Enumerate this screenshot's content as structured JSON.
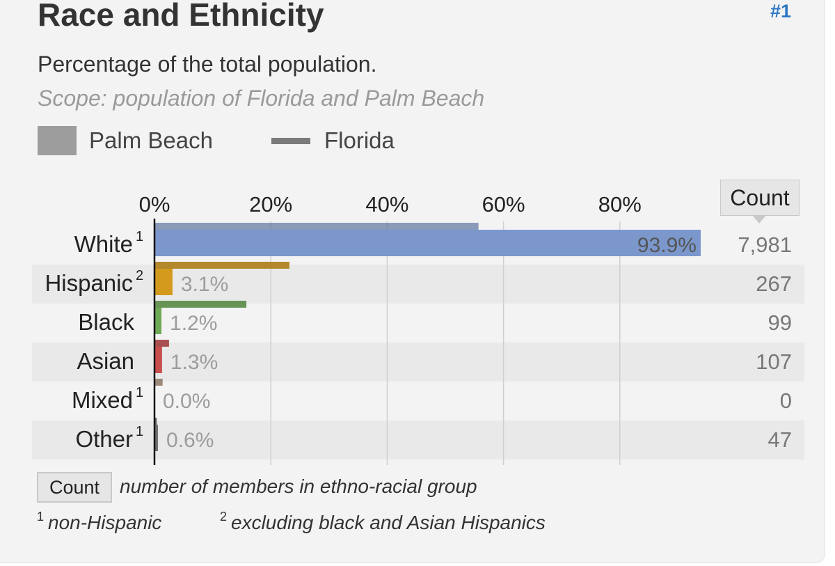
{
  "header": {
    "title": "Race and Ethnicity",
    "rank": "#1",
    "subtitle": "Percentage of the total population.",
    "scope": "Scope: population of Florida and Palm Beach"
  },
  "legend": {
    "primary": "Palm Beach",
    "comparison": "Florida"
  },
  "colors": {
    "white": "#7b97cc",
    "hispanic": "#d39a1c",
    "black": "#6ea955",
    "asian": "#c84d4d",
    "mixed": "#b49a84",
    "other": "#6f6f6f",
    "row_alt": "#e9e9e9"
  },
  "chart_data": {
    "type": "bar",
    "orientation": "horizontal",
    "title": "Race and Ethnicity",
    "xlabel": "",
    "ylabel": "",
    "xlim": [
      0,
      100
    ],
    "x_ticks": [
      "0%",
      "20%",
      "40%",
      "60%",
      "80%"
    ],
    "categories": [
      "White",
      "Hispanic",
      "Black",
      "Asian",
      "Mixed",
      "Other"
    ],
    "superscripts": [
      "1",
      "2",
      "",
      "",
      "1",
      "1"
    ],
    "series": [
      {
        "name": "Palm Beach",
        "values": [
          93.9,
          3.1,
          1.2,
          1.3,
          0.0,
          0.6
        ]
      },
      {
        "name": "Florida",
        "values": [
          55.7,
          23.2,
          15.8,
          2.5,
          1.4,
          0.4
        ]
      }
    ],
    "value_labels": [
      "93.9%",
      "3.1%",
      "1.2%",
      "1.3%",
      "0.0%",
      "0.6%"
    ],
    "counts": [
      "7,981",
      "267",
      "99",
      "107",
      "0",
      "47"
    ],
    "count_header": "Count"
  },
  "footer": {
    "count_box": "Count",
    "count_desc": "number of members in ethno-racial group",
    "note1_sup": "1",
    "note1_text": "non-Hispanic",
    "note2_sup": "2",
    "note2_text": "excluding black and Asian Hispanics"
  }
}
